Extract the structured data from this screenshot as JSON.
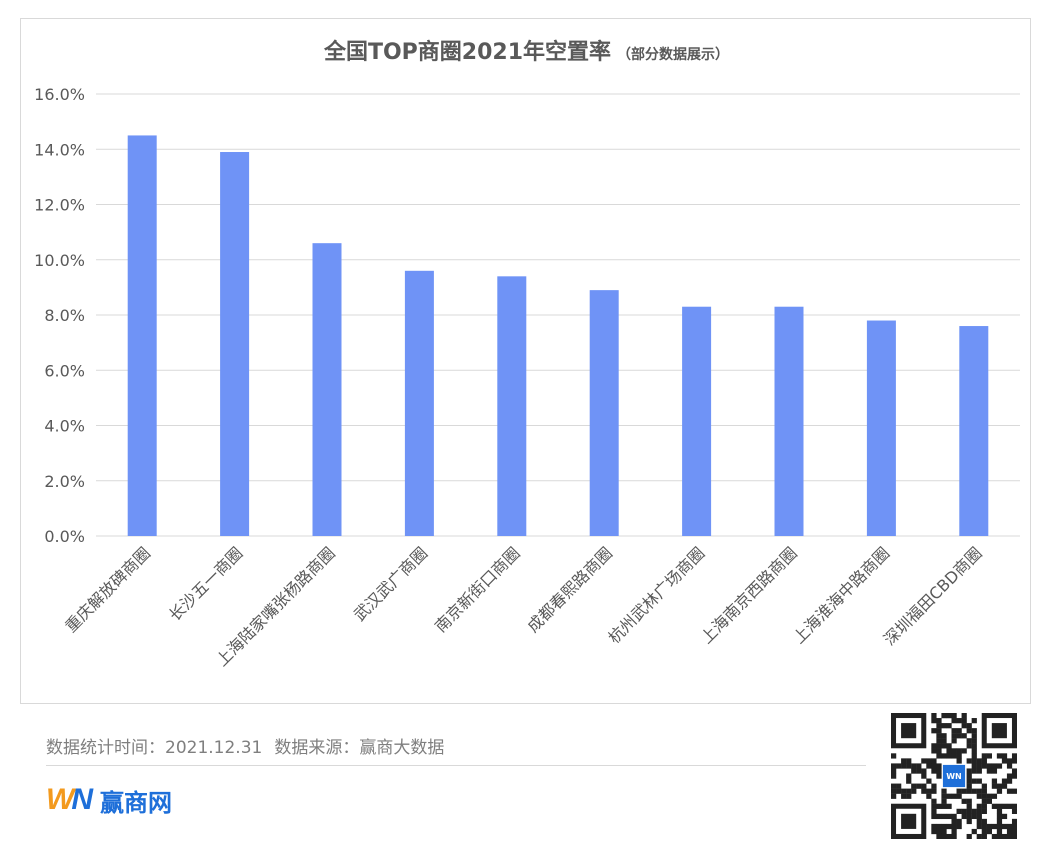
{
  "chart_data": {
    "type": "bar",
    "title": "全国TOP商圈2021年空置率",
    "subtitle": "（部分数据展示）",
    "categories": [
      "重庆解放碑商圈",
      "长沙五一商圈",
      "上海陆家嘴张杨路商圈",
      "武汉武广商圈",
      "南京新街口商圈",
      "成都春熙路商圈",
      "杭州武林广场商圈",
      "上海南京西路商圈",
      "上海淮海中路商圈",
      "深圳福田CBD商圈"
    ],
    "values": [
      14.5,
      13.9,
      10.6,
      9.6,
      9.4,
      8.9,
      8.3,
      8.3,
      7.8,
      7.6
    ],
    "ylim": [
      0,
      16
    ],
    "yticks": [
      "0.0%",
      "2.0%",
      "4.0%",
      "6.0%",
      "8.0%",
      "10.0%",
      "12.0%",
      "14.0%",
      "16.0%"
    ],
    "grid": true,
    "bar_color": "#6f93f6"
  },
  "footer": {
    "stat_time": "数据统计时间：2021.12.31",
    "source": "数据来源：赢商大数据"
  },
  "brand": {
    "mark_w": "W",
    "mark_n": "N",
    "name": "赢商网",
    "qr_badge": "WN"
  }
}
